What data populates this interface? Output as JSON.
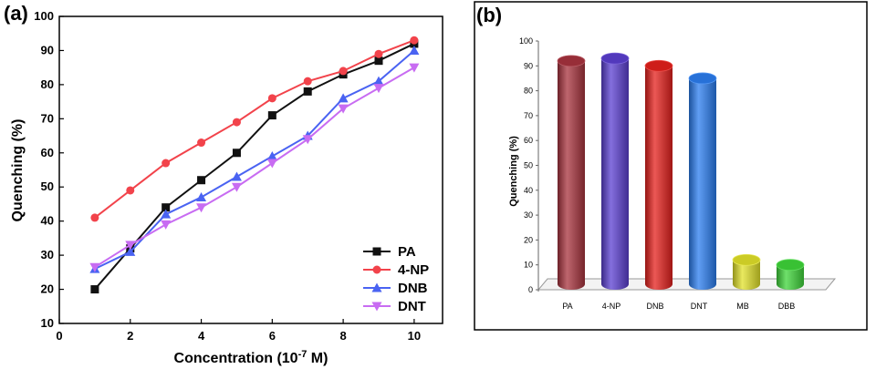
{
  "chart_data": [
    {
      "panel": "(a)",
      "type": "line",
      "xlabel": "Concentration (10",
      "xlabel_sup": "-7",
      "xlabel_tail": " M)",
      "ylabel": "Quenching (%)",
      "xlim": [
        0,
        10.8
      ],
      "ylim": [
        10,
        100
      ],
      "xticks": [
        0,
        2,
        4,
        6,
        8,
        10
      ],
      "yticks": [
        10,
        20,
        30,
        40,
        50,
        60,
        70,
        80,
        90,
        100
      ],
      "legend_position": "bottom-right",
      "x": [
        1,
        2,
        3,
        4,
        5,
        6,
        7,
        8,
        9,
        10
      ],
      "series": [
        {
          "name": "PA",
          "color": "#111111",
          "marker": "square",
          "values": [
            20,
            32,
            44,
            52,
            60,
            71,
            78,
            83,
            87,
            92
          ]
        },
        {
          "name": "4-NP",
          "color": "#f2434b",
          "marker": "circle",
          "values": [
            41,
            49,
            57,
            63,
            69,
            76,
            81,
            84,
            89,
            93
          ]
        },
        {
          "name": "DNB",
          "color": "#4a63f2",
          "marker": "triangle-up",
          "values": [
            26,
            31,
            42,
            47,
            53,
            59,
            65,
            76,
            81,
            90
          ]
        },
        {
          "name": "DNT",
          "color": "#c86cf2",
          "marker": "triangle-down",
          "values": [
            26.5,
            33,
            39,
            44,
            50,
            57,
            64,
            73,
            79,
            85
          ]
        }
      ]
    },
    {
      "panel": "(b)",
      "type": "bar",
      "ylabel": "Quenching (%)",
      "ylim": [
        0,
        100
      ],
      "yticks": [
        0,
        10,
        20,
        30,
        40,
        50,
        60,
        70,
        80,
        90,
        100
      ],
      "categories": [
        "PA",
        "4-NP",
        "DNB",
        "DNT",
        "MB",
        "DBB"
      ],
      "values": [
        92,
        93,
        90,
        85,
        12,
        10
      ],
      "colors": [
        "#a8333e",
        "#5b3fd1",
        "#e5201c",
        "#2b7ef0",
        "#e2e22a",
        "#3fd63a"
      ]
    }
  ]
}
